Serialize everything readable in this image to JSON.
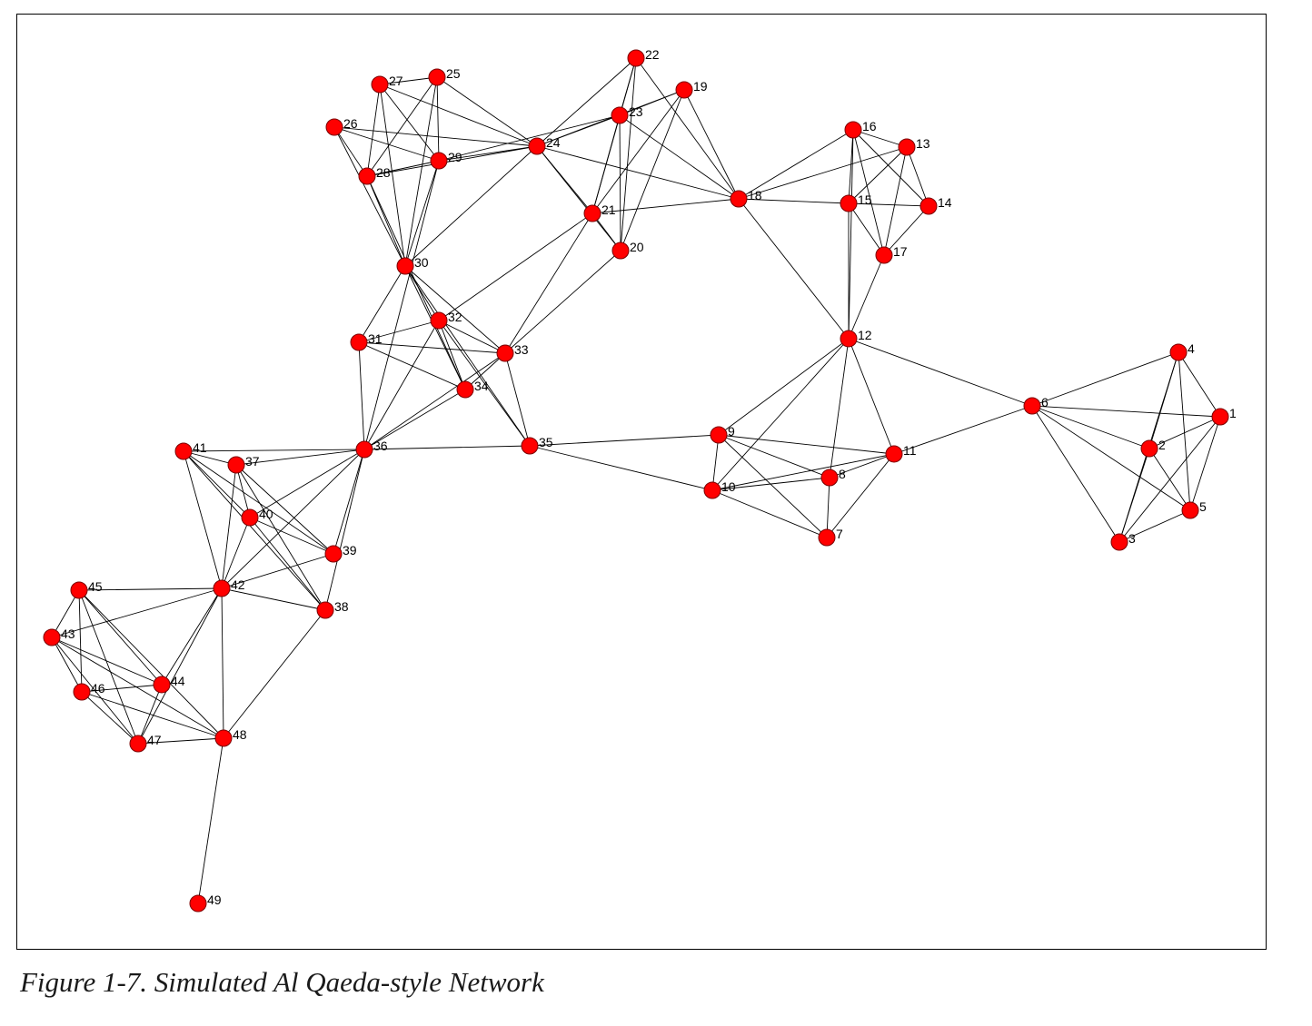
{
  "caption": "Figure 1-7. Simulated Al Qaeda-style Network",
  "colors": {
    "node_fill": "#ff0000",
    "node_stroke": "#7a0000",
    "edge": "#000000"
  },
  "nodes": [
    {
      "id": "1"
    },
    {
      "id": "2"
    },
    {
      "id": "3"
    },
    {
      "id": "4"
    },
    {
      "id": "5"
    },
    {
      "id": "6"
    },
    {
      "id": "7"
    },
    {
      "id": "8"
    },
    {
      "id": "9"
    },
    {
      "id": "10"
    },
    {
      "id": "11"
    },
    {
      "id": "12"
    },
    {
      "id": "13"
    },
    {
      "id": "14"
    },
    {
      "id": "15"
    },
    {
      "id": "16"
    },
    {
      "id": "17"
    },
    {
      "id": "18"
    },
    {
      "id": "19"
    },
    {
      "id": "20"
    },
    {
      "id": "21"
    },
    {
      "id": "22"
    },
    {
      "id": "23"
    },
    {
      "id": "24"
    },
    {
      "id": "25"
    },
    {
      "id": "26"
    },
    {
      "id": "27"
    },
    {
      "id": "28"
    },
    {
      "id": "29"
    },
    {
      "id": "30"
    },
    {
      "id": "31"
    },
    {
      "id": "32"
    },
    {
      "id": "33"
    },
    {
      "id": "34"
    },
    {
      "id": "35"
    },
    {
      "id": "36"
    },
    {
      "id": "37"
    },
    {
      "id": "38"
    },
    {
      "id": "39"
    },
    {
      "id": "40"
    },
    {
      "id": "41"
    },
    {
      "id": "42"
    },
    {
      "id": "43"
    },
    {
      "id": "44"
    },
    {
      "id": "45"
    },
    {
      "id": "46"
    },
    {
      "id": "47"
    },
    {
      "id": "48"
    },
    {
      "id": "49"
    }
  ],
  "edges": [
    [
      "1",
      "2"
    ],
    [
      "1",
      "3"
    ],
    [
      "1",
      "4"
    ],
    [
      "1",
      "5"
    ],
    [
      "1",
      "6"
    ],
    [
      "2",
      "3"
    ],
    [
      "2",
      "4"
    ],
    [
      "2",
      "5"
    ],
    [
      "2",
      "6"
    ],
    [
      "3",
      "4"
    ],
    [
      "3",
      "5"
    ],
    [
      "3",
      "6"
    ],
    [
      "4",
      "5"
    ],
    [
      "4",
      "6"
    ],
    [
      "5",
      "6"
    ],
    [
      "6",
      "11"
    ],
    [
      "6",
      "12"
    ],
    [
      "7",
      "8"
    ],
    [
      "7",
      "9"
    ],
    [
      "7",
      "10"
    ],
    [
      "7",
      "11"
    ],
    [
      "8",
      "9"
    ],
    [
      "8",
      "10"
    ],
    [
      "8",
      "11"
    ],
    [
      "8",
      "12"
    ],
    [
      "9",
      "10"
    ],
    [
      "9",
      "11"
    ],
    [
      "9",
      "12"
    ],
    [
      "9",
      "35"
    ],
    [
      "10",
      "11"
    ],
    [
      "10",
      "12"
    ],
    [
      "10",
      "35"
    ],
    [
      "11",
      "12"
    ],
    [
      "12",
      "15"
    ],
    [
      "12",
      "16"
    ],
    [
      "12",
      "17"
    ],
    [
      "12",
      "18"
    ],
    [
      "13",
      "14"
    ],
    [
      "13",
      "15"
    ],
    [
      "13",
      "16"
    ],
    [
      "13",
      "17"
    ],
    [
      "13",
      "18"
    ],
    [
      "14",
      "15"
    ],
    [
      "14",
      "16"
    ],
    [
      "14",
      "17"
    ],
    [
      "15",
      "16"
    ],
    [
      "15",
      "17"
    ],
    [
      "15",
      "18"
    ],
    [
      "16",
      "17"
    ],
    [
      "16",
      "18"
    ],
    [
      "18",
      "19"
    ],
    [
      "18",
      "21"
    ],
    [
      "18",
      "22"
    ],
    [
      "18",
      "23"
    ],
    [
      "18",
      "24"
    ],
    [
      "19",
      "20"
    ],
    [
      "19",
      "21"
    ],
    [
      "19",
      "23"
    ],
    [
      "19",
      "24"
    ],
    [
      "20",
      "21"
    ],
    [
      "20",
      "22"
    ],
    [
      "20",
      "23"
    ],
    [
      "20",
      "33"
    ],
    [
      "20",
      "24"
    ],
    [
      "21",
      "22"
    ],
    [
      "21",
      "23"
    ],
    [
      "21",
      "24"
    ],
    [
      "21",
      "32"
    ],
    [
      "21",
      "33"
    ],
    [
      "22",
      "23"
    ],
    [
      "22",
      "24"
    ],
    [
      "23",
      "24"
    ],
    [
      "23",
      "29"
    ],
    [
      "24",
      "25"
    ],
    [
      "24",
      "26"
    ],
    [
      "24",
      "27"
    ],
    [
      "24",
      "28"
    ],
    [
      "24",
      "29"
    ],
    [
      "24",
      "30"
    ],
    [
      "25",
      "27"
    ],
    [
      "25",
      "28"
    ],
    [
      "25",
      "29"
    ],
    [
      "25",
      "30"
    ],
    [
      "26",
      "28"
    ],
    [
      "26",
      "29"
    ],
    [
      "26",
      "30"
    ],
    [
      "27",
      "28"
    ],
    [
      "27",
      "29"
    ],
    [
      "27",
      "30"
    ],
    [
      "28",
      "29"
    ],
    [
      "28",
      "30"
    ],
    [
      "28",
      "34"
    ],
    [
      "29",
      "30"
    ],
    [
      "29",
      "36"
    ],
    [
      "30",
      "31"
    ],
    [
      "30",
      "32"
    ],
    [
      "30",
      "33"
    ],
    [
      "30",
      "34"
    ],
    [
      "30",
      "35"
    ],
    [
      "31",
      "32"
    ],
    [
      "31",
      "33"
    ],
    [
      "31",
      "34"
    ],
    [
      "31",
      "36"
    ],
    [
      "32",
      "33"
    ],
    [
      "32",
      "34"
    ],
    [
      "32",
      "35"
    ],
    [
      "32",
      "36"
    ],
    [
      "33",
      "34"
    ],
    [
      "33",
      "35"
    ],
    [
      "33",
      "36"
    ],
    [
      "34",
      "36"
    ],
    [
      "35",
      "36"
    ],
    [
      "36",
      "37"
    ],
    [
      "36",
      "38"
    ],
    [
      "36",
      "39"
    ],
    [
      "36",
      "40"
    ],
    [
      "36",
      "41"
    ],
    [
      "36",
      "42"
    ],
    [
      "37",
      "38"
    ],
    [
      "37",
      "39"
    ],
    [
      "37",
      "40"
    ],
    [
      "37",
      "41"
    ],
    [
      "37",
      "42"
    ],
    [
      "38",
      "40"
    ],
    [
      "38",
      "41"
    ],
    [
      "38",
      "42"
    ],
    [
      "38",
      "48"
    ],
    [
      "39",
      "40"
    ],
    [
      "39",
      "41"
    ],
    [
      "39",
      "42"
    ],
    [
      "40",
      "41"
    ],
    [
      "40",
      "42"
    ],
    [
      "41",
      "42"
    ],
    [
      "42",
      "43"
    ],
    [
      "42",
      "44"
    ],
    [
      "42",
      "45"
    ],
    [
      "42",
      "47"
    ],
    [
      "42",
      "48"
    ],
    [
      "43",
      "44"
    ],
    [
      "43",
      "45"
    ],
    [
      "43",
      "46"
    ],
    [
      "43",
      "47"
    ],
    [
      "43",
      "48"
    ],
    [
      "44",
      "45"
    ],
    [
      "44",
      "46"
    ],
    [
      "44",
      "47"
    ],
    [
      "45",
      "46"
    ],
    [
      "45",
      "47"
    ],
    [
      "45",
      "48"
    ],
    [
      "46",
      "47"
    ],
    [
      "46",
      "48"
    ],
    [
      "47",
      "48"
    ],
    [
      "48",
      "49"
    ]
  ]
}
